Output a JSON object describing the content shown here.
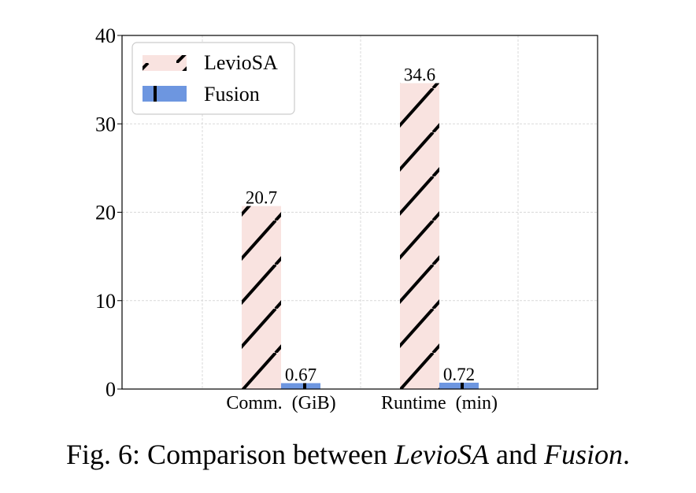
{
  "chart_data": {
    "type": "bar",
    "categories": [
      "Comm.  (GiB)",
      "Runtime  (min)"
    ],
    "series": [
      {
        "name": "LevioSA",
        "values": [
          20.7,
          34.6
        ],
        "color": "#f9e3e0",
        "hatch": "/"
      },
      {
        "name": "Fusion",
        "values": [
          0.67,
          0.72
        ],
        "color": "#6d96e0",
        "hatch": "|"
      }
    ],
    "value_labels": [
      [
        "20.7",
        "34.6"
      ],
      [
        "0.67",
        "0.72"
      ]
    ],
    "ylim": [
      0,
      40
    ],
    "yticks": [
      0,
      10,
      20,
      30,
      40
    ],
    "grid": true,
    "legend_position": "top-left"
  },
  "caption": {
    "prefix": "Fig. 6: Comparison between ",
    "em1": "LevioSA",
    "middle": " and ",
    "em2": "Fusion",
    "suffix": "."
  }
}
